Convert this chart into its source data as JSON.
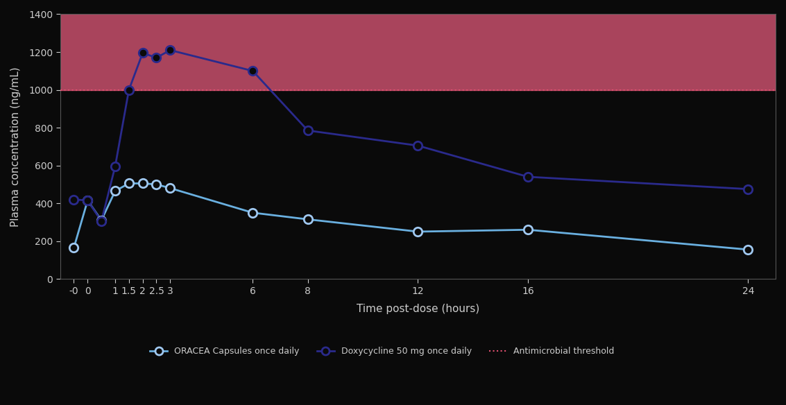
{
  "background_color": "#0a0a0a",
  "plot_bg_color": "#0a0a0a",
  "threshold": 1000,
  "threshold_color": "#e05070",
  "fill_above_color": "#e05878",
  "fill_above_alpha": 0.75,
  "ylim": [
    0,
    1400
  ],
  "yticks": [
    0,
    200,
    400,
    600,
    800,
    1000,
    1200,
    1400
  ],
  "xtick_labels": [
    "-0",
    "0",
    "1",
    "1.5",
    "2",
    "2.5",
    "3",
    "6",
    "8",
    "12",
    "16",
    "24"
  ],
  "xtick_positions": [
    -0.5,
    0,
    1,
    1.5,
    2,
    2.5,
    3,
    6,
    8,
    12,
    16,
    24
  ],
  "xlabel": "Time post-dose (hours)",
  "ylabel": "Plasma concentration (ng/mL)",
  "oracea_x": [
    -0.5,
    0,
    0.5,
    1,
    1.5,
    2,
    2.5,
    3,
    6,
    8,
    12,
    16,
    24
  ],
  "oracea_y": [
    165,
    415,
    310,
    465,
    505,
    505,
    500,
    480,
    350,
    315,
    250,
    260,
    155
  ],
  "oracea_color": "#6ab0e0",
  "oracea_marker_edge": "#a0c8f0",
  "doxy_x": [
    -0.5,
    0,
    0.5,
    1,
    1.5,
    2,
    2.5,
    3,
    6,
    8,
    12,
    16,
    24
  ],
  "doxy_y": [
    420,
    415,
    305,
    595,
    1000,
    1195,
    1170,
    1210,
    1100,
    785,
    705,
    540,
    475
  ],
  "doxy_color": "#2a2a8c",
  "doxy_marker_edge": "#2a2a8c",
  "text_color": "#cccccc",
  "axis_color": "#555555",
  "fontsize_labels": 11,
  "fontsize_ticks": 10,
  "legend_oracea_label": "ORACEA Capsules once daily",
  "legend_doxy_label": "Doxycycline 50 mg once daily",
  "legend_threshold_label": "Antimicrobial threshold"
}
